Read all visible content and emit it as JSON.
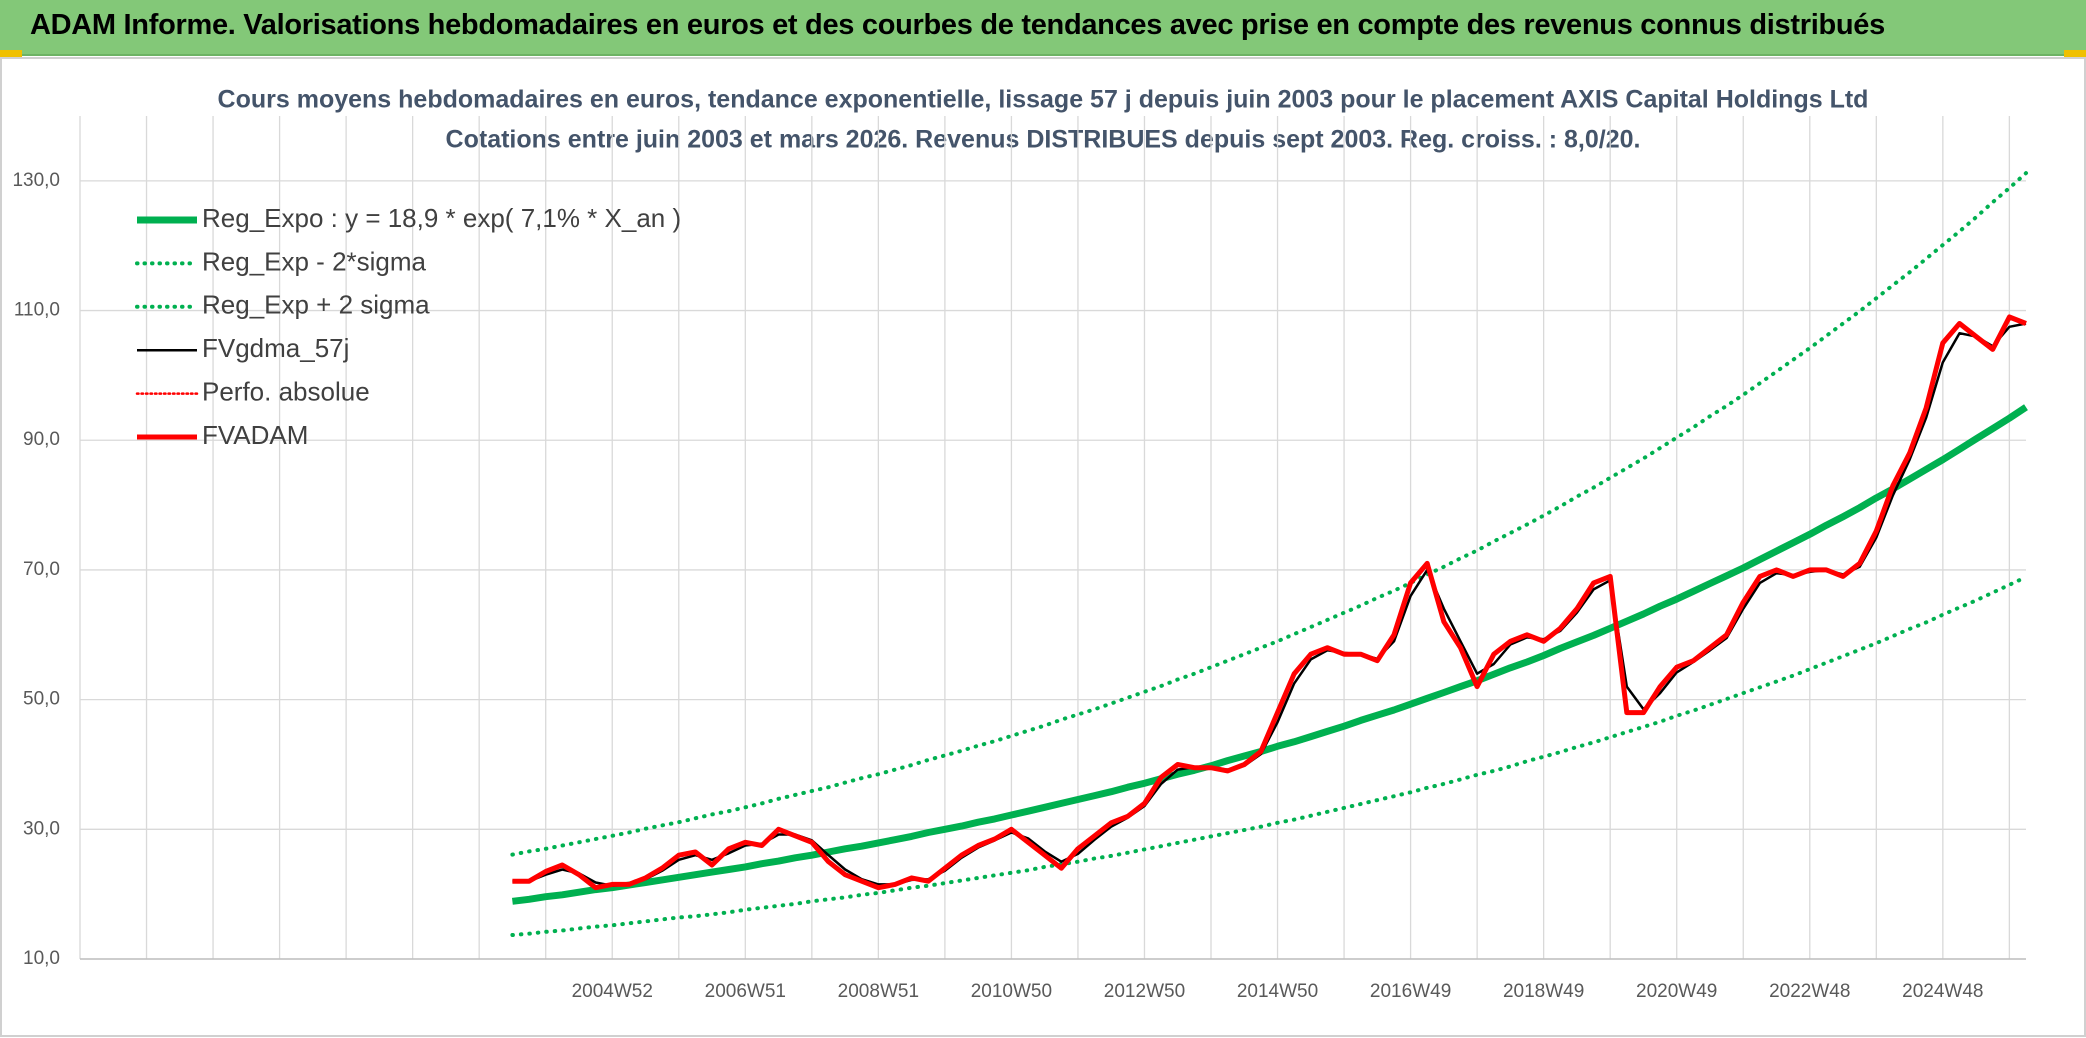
{
  "header": {
    "title": "ADAM Informe. Valorisations hebdomadaires en euros et des courbes de tendances avec prise en compte des revenus connus distribués"
  },
  "chart_data": {
    "type": "line",
    "title": "Cours moyens hebdomadaires en euros, tendance exponentielle, lissage 57 j depuis juin 2003 pour le placement AXIS Capital Holdings Ltd",
    "subtitle": "Cotations entre juin 2003 et mars 2026. Revenus DISTRIBUES depuis sept 2003. Reg. croiss. : 8,0/20.",
    "categories": [
      null,
      null,
      null,
      null,
      null,
      null,
      null,
      null,
      null,
      null,
      null,
      null,
      null,
      null,
      null,
      null,
      null,
      null,
      null,
      null,
      null,
      null,
      null,
      null,
      null,
      null,
      null,
      null,
      null,
      null,
      null,
      null,
      "2004W52",
      null,
      null,
      null,
      null,
      null,
      null,
      null,
      "2006W51",
      null,
      null,
      null,
      null,
      null,
      null,
      null,
      "2008W51",
      null,
      null,
      null,
      null,
      null,
      null,
      null,
      "2010W50",
      null,
      null,
      null,
      null,
      null,
      null,
      null,
      "2012W50",
      null,
      null,
      null,
      null,
      null,
      null,
      null,
      "2014W50",
      null,
      null,
      null,
      null,
      null,
      null,
      null,
      "2016W49",
      null,
      null,
      null,
      null,
      null,
      null,
      null,
      "2018W49",
      null,
      null,
      null,
      null,
      null,
      null,
      null,
      "2020W49",
      null,
      null,
      null,
      null,
      null,
      null,
      null,
      "2022W48",
      null,
      null,
      null,
      null,
      null,
      null,
      null,
      "2024W48",
      null,
      null,
      null,
      null,
      null
    ],
    "ylim": [
      10,
      140
    ],
    "yticks": [
      {
        "value": 10,
        "label": "10,0"
      },
      {
        "value": 30,
        "label": "30,0"
      },
      {
        "value": 50,
        "label": "50,0"
      },
      {
        "value": 70,
        "label": "70,0"
      },
      {
        "value": 90,
        "label": "90,0"
      },
      {
        "value": 110,
        "label": "110,0"
      },
      {
        "value": 130,
        "label": "130,0"
      }
    ],
    "grid": true,
    "legend": "top-left",
    "series": [
      {
        "name": "Reg_Expo : y = 18,9 * exp( 7,1% *  X_an )",
        "color": "#00b050",
        "style": "solid",
        "values": [
          null,
          null,
          null,
          null,
          null,
          null,
          null,
          null,
          null,
          null,
          null,
          null,
          null,
          null,
          null,
          null,
          null,
          null,
          null,
          null,
          null,
          null,
          null,
          null,
          null,
          null,
          18.9,
          19.2,
          19.6,
          19.9,
          20.3,
          20.7,
          21.0,
          21.4,
          21.8,
          22.2,
          22.6,
          23.0,
          23.4,
          23.8,
          24.2,
          24.7,
          25.1,
          25.6,
          26.0,
          26.5,
          27.0,
          27.4,
          27.9,
          28.4,
          28.9,
          29.5,
          30.0,
          30.5,
          31.1,
          31.6,
          32.2,
          32.8,
          33.4,
          34.0,
          34.6,
          35.2,
          35.8,
          36.5,
          37.1,
          37.8,
          38.5,
          39.1,
          39.8,
          40.6,
          41.3,
          42.0,
          42.8,
          43.5,
          44.3,
          45.1,
          45.9,
          46.8,
          47.6,
          48.4,
          49.3,
          50.2,
          51.1,
          52.0,
          52.9,
          53.9,
          54.9,
          55.8,
          56.8,
          57.9,
          58.9,
          59.9,
          61.0,
          62.1,
          63.2,
          64.4,
          65.5,
          66.7,
          67.9,
          69.1,
          70.3,
          71.6,
          72.9,
          74.2,
          75.5,
          76.9,
          78.2,
          79.6,
          81.1,
          82.5,
          84.0,
          85.5,
          87.0,
          88.6,
          90.2,
          91.8,
          93.4,
          95.1
        ]
      },
      {
        "name": "Reg_Exp - 2*sigma",
        "color": "#00b050",
        "style": "dotted",
        "values": [
          null,
          null,
          null,
          null,
          null,
          null,
          null,
          null,
          null,
          null,
          null,
          null,
          null,
          null,
          null,
          null,
          null,
          null,
          null,
          null,
          null,
          null,
          null,
          null,
          null,
          null,
          13.7,
          13.9,
          14.2,
          14.4,
          14.7,
          15.0,
          15.2,
          15.5,
          15.8,
          16.1,
          16.4,
          16.6,
          16.9,
          17.2,
          17.6,
          17.9,
          18.2,
          18.5,
          18.9,
          19.2,
          19.5,
          19.9,
          20.2,
          20.6,
          21.0,
          21.3,
          21.7,
          22.1,
          22.5,
          22.9,
          23.3,
          23.7,
          24.2,
          24.6,
          25.0,
          25.5,
          25.9,
          26.4,
          26.9,
          27.4,
          27.9,
          28.4,
          28.9,
          29.4,
          29.9,
          30.4,
          31.0,
          31.5,
          32.1,
          32.7,
          33.3,
          33.9,
          34.5,
          35.1,
          35.7,
          36.4,
          37.0,
          37.7,
          38.4,
          39.0,
          39.7,
          40.5,
          41.2,
          41.9,
          42.7,
          43.4,
          44.2,
          45.0,
          45.8,
          46.6,
          47.5,
          48.3,
          49.2,
          50.1,
          51.0,
          51.9,
          52.8,
          53.7,
          54.7,
          55.7,
          56.7,
          57.7,
          58.7,
          59.8,
          60.9,
          61.9,
          63.1,
          64.2,
          65.3,
          66.5,
          67.7,
          68.9
        ]
      },
      {
        "name": "Reg_Exp + 2 sigma",
        "color": "#00b050",
        "style": "dotted",
        "values": [
          null,
          null,
          null,
          null,
          null,
          null,
          null,
          null,
          null,
          null,
          null,
          null,
          null,
          null,
          null,
          null,
          null,
          null,
          null,
          null,
          null,
          null,
          null,
          null,
          null,
          null,
          26.1,
          26.6,
          27.0,
          27.5,
          28.0,
          28.5,
          29.0,
          29.5,
          30.1,
          30.6,
          31.1,
          31.7,
          32.3,
          32.8,
          33.4,
          34.0,
          34.7,
          35.3,
          35.9,
          36.5,
          37.2,
          37.9,
          38.5,
          39.2,
          39.9,
          40.7,
          41.4,
          42.1,
          42.9,
          43.6,
          44.4,
          45.2,
          46.0,
          46.9,
          47.7,
          48.5,
          49.4,
          50.3,
          51.2,
          52.1,
          53.1,
          54.0,
          55.0,
          56.0,
          57.0,
          58.0,
          59.0,
          60.1,
          61.2,
          62.3,
          63.4,
          64.5,
          65.7,
          66.8,
          68.0,
          69.3,
          70.5,
          71.8,
          73.0,
          74.4,
          75.7,
          77.0,
          78.4,
          79.8,
          81.3,
          82.7,
          84.2,
          85.7,
          87.2,
          88.8,
          90.4,
          92.0,
          93.7,
          95.3,
          97.0,
          98.8,
          100.6,
          102.4,
          104.2,
          106.1,
          108.0,
          109.9,
          111.9,
          113.9,
          115.9,
          118.0,
          120.1,
          122.2,
          124.4,
          126.7,
          128.9,
          131.2
        ]
      },
      {
        "name": "FVgdma_57j",
        "color": "#000000",
        "style": "solid",
        "values": [
          null,
          null,
          null,
          null,
          null,
          null,
          null,
          null,
          null,
          null,
          null,
          null,
          null,
          null,
          null,
          null,
          null,
          null,
          null,
          null,
          null,
          null,
          null,
          null,
          null,
          null,
          22,
          22,
          23,
          23.8,
          23.2,
          21.8,
          21.3,
          21.5,
          22.3,
          23.6,
          25.3,
          26,
          25.3,
          26.3,
          27.5,
          27.8,
          29.2,
          29.2,
          28.3,
          26,
          23.8,
          22.3,
          21.5,
          21.5,
          22.2,
          22.3,
          23.6,
          25.6,
          27.2,
          28.3,
          29.5,
          28.6,
          26.6,
          25,
          26.2,
          28.4,
          30.4,
          31.8,
          33.6,
          37,
          39.2,
          39.6,
          39.5,
          39.2,
          39.8,
          41.6,
          46.5,
          52.5,
          56.2,
          57.6,
          57.2,
          57,
          56.3,
          59,
          66,
          70,
          64,
          59,
          54,
          55.5,
          58.5,
          59.6,
          59.3,
          60.6,
          63.4,
          67,
          68.4,
          52,
          48.5,
          51,
          54.2,
          55.8,
          57.6,
          59.5,
          64,
          68,
          69.5,
          69.2,
          69.7,
          70,
          69.3,
          70.5,
          75,
          81.5,
          87,
          93.5,
          102,
          106.5,
          106,
          104.5,
          107.5,
          108
        ]
      },
      {
        "name": "Perfo. absolue",
        "color": "#ff0000",
        "style": "dotted",
        "values": [
          null,
          null,
          null,
          null,
          null,
          null,
          null,
          null,
          null,
          null,
          null,
          null,
          null,
          null,
          null,
          null,
          null,
          null,
          null,
          null,
          null,
          null,
          null,
          null,
          null,
          null,
          null,
          null,
          null,
          null,
          null,
          null,
          null,
          null,
          null,
          null,
          null,
          null,
          null,
          null,
          null,
          null,
          null,
          null,
          null,
          null,
          null,
          null,
          null,
          null,
          null,
          null,
          null,
          null,
          null,
          null,
          null,
          null,
          null,
          null,
          null,
          null,
          null,
          null,
          null,
          null,
          null,
          null,
          null,
          null,
          null,
          null,
          null,
          null,
          null,
          null,
          null,
          null,
          null,
          null,
          null,
          null,
          null,
          null,
          null,
          null,
          null,
          null,
          null,
          null,
          null,
          null,
          null,
          null,
          null,
          null,
          null,
          null,
          null,
          null,
          null,
          null,
          null,
          null,
          null,
          null,
          null,
          null,
          null,
          null,
          null,
          null,
          null,
          null,
          null,
          null,
          null,
          null
        ]
      },
      {
        "name": "FVADAM",
        "color": "#ff0000",
        "style": "solid",
        "values": [
          null,
          null,
          null,
          null,
          null,
          null,
          null,
          null,
          null,
          null,
          null,
          null,
          null,
          null,
          null,
          null,
          null,
          null,
          null,
          null,
          null,
          null,
          null,
          null,
          null,
          null,
          22,
          22,
          23.5,
          24.5,
          23,
          21,
          21.5,
          21.5,
          22.5,
          24,
          26,
          26.5,
          24.5,
          27,
          28,
          27.5,
          30,
          29,
          28,
          25,
          23,
          22,
          21,
          21.5,
          22.5,
          22,
          24,
          26,
          27.5,
          28.5,
          30,
          28,
          26,
          24,
          27,
          29,
          31,
          32,
          34,
          38,
          40,
          39.5,
          39.5,
          39,
          40,
          42,
          48,
          54,
          57,
          58,
          57,
          57,
          56,
          60,
          68,
          71,
          62,
          58,
          52,
          57,
          59,
          60,
          59,
          61,
          64,
          68,
          69,
          48,
          48,
          52,
          55,
          56,
          58,
          60,
          65,
          69,
          70,
          69,
          70,
          70,
          69,
          71,
          76,
          83,
          88,
          95,
          105,
          108,
          106,
          104,
          109,
          108
        ]
      }
    ]
  }
}
